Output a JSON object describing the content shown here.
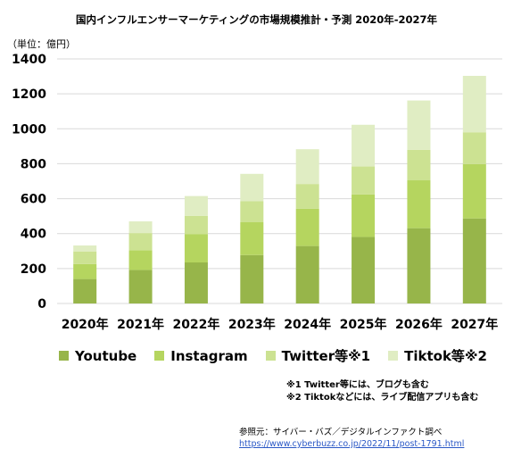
{
  "title": "国内インフルエンサーマーケティングの市場規模推計・予測 2020年-2027年",
  "unit_label": "（単位：億円）",
  "chart_data": {
    "type": "bar",
    "stacked": true,
    "categories": [
      "2020年",
      "2021年",
      "2022年",
      "2023年",
      "2024年",
      "2025年",
      "2026年",
      "2027年"
    ],
    "series": [
      {
        "name": "Youtube",
        "color": "#97b54a",
        "values": [
          140,
          192,
          235,
          277,
          329,
          381,
          431,
          487
        ]
      },
      {
        "name": "Instagram",
        "color": "#b5d55f",
        "values": [
          86,
          113,
          161,
          188,
          214,
          243,
          274,
          311
        ]
      },
      {
        "name": "Twitter等※1",
        "color": "#cce292",
        "values": [
          72,
          98,
          106,
          120,
          141,
          160,
          175,
          182
        ]
      },
      {
        "name": "Tiktok等※2",
        "color": "#e0edc3",
        "values": [
          34,
          67,
          113,
          157,
          199,
          239,
          282,
          323
        ]
      }
    ],
    "ylim": [
      0,
      1400
    ],
    "yticks": [
      0,
      200,
      400,
      600,
      800,
      1000,
      1200,
      1400
    ],
    "grid": true,
    "legend": "bottom"
  },
  "notes": [
    "※1 Twitter等には、ブログも含む",
    "※2 Tiktokなどには、ライブ配信アプリも含む"
  ],
  "source": {
    "text": "参照元：サイバー・バズ／デジタルインファクト調べ",
    "url": "https://www.cyberbuzz.co.jp/2022/11/post-1791.html"
  }
}
